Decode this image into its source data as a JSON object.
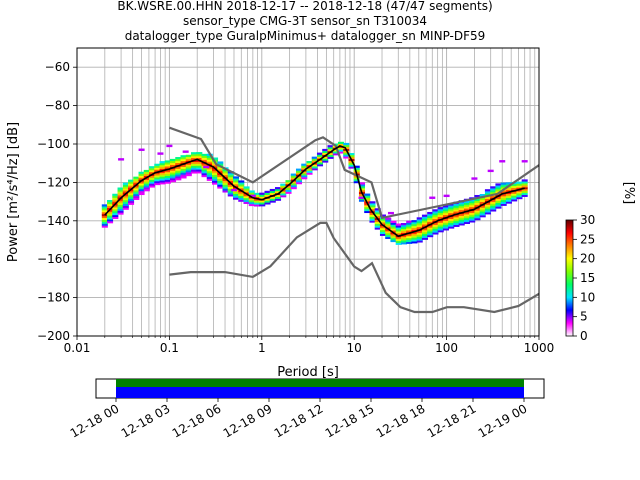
{
  "chart_data": {
    "type": "line",
    "title_lines": [
      "BK.WSRE.00.HHN   2018-12-17 -- 2018-12-18  (47/47 segments)",
      "sensor_type CMG-3T sensor_sn T310034",
      "datalogger_type GuralpMinimus+ datalogger_sn MINP-DF59"
    ],
    "xlabel": "Period [s]",
    "ylabel": "Power [m²/s⁴/Hz] [dB]",
    "x_scale": "log",
    "xlim": [
      0.01,
      1000
    ],
    "ylim": [
      -200,
      -50
    ],
    "x_ticks": [
      {
        "value": 0.01,
        "label": "0.01"
      },
      {
        "value": 0.1,
        "label": "0.1"
      },
      {
        "value": 1,
        "label": "1"
      },
      {
        "value": 10,
        "label": "10"
      },
      {
        "value": 100,
        "label": "100"
      },
      {
        "value": 1000,
        "label": "1000"
      }
    ],
    "y_ticks": [
      {
        "value": -200,
        "label": "−200"
      },
      {
        "value": -180,
        "label": "−180"
      },
      {
        "value": -160,
        "label": "−160"
      },
      {
        "value": -140,
        "label": "−140"
      },
      {
        "value": -120,
        "label": "−120"
      },
      {
        "value": -100,
        "label": "−100"
      },
      {
        "value": -80,
        "label": "−80"
      },
      {
        "value": -60,
        "label": "−60"
      }
    ],
    "grid": true,
    "noise_models": {
      "high": [
        [
          0.1,
          -91.5
        ],
        [
          0.22,
          -97.4
        ],
        [
          0.32,
          -110.5
        ],
        [
          0.8,
          -120
        ],
        [
          3.8,
          -98
        ],
        [
          4.6,
          -96.5
        ],
        [
          6.3,
          -101
        ],
        [
          7.9,
          -113.5
        ],
        [
          15.4,
          -120
        ],
        [
          20,
          -138.5
        ],
        [
          354.8,
          -126
        ],
        [
          1000,
          -111
        ]
      ],
      "low": [
        [
          0.1,
          -168
        ],
        [
          0.17,
          -166.7
        ],
        [
          0.4,
          -166.7
        ],
        [
          0.8,
          -169.2
        ],
        [
          1.24,
          -163.7
        ],
        [
          2.4,
          -148.6
        ],
        [
          4.3,
          -141.1
        ],
        [
          5,
          -141.1
        ],
        [
          6,
          -149
        ],
        [
          10,
          -163.8
        ],
        [
          12,
          -166.2
        ],
        [
          15.6,
          -162.1
        ],
        [
          21.9,
          -177.5
        ],
        [
          31.6,
          -185
        ],
        [
          45,
          -187.5
        ],
        [
          70,
          -187.5
        ],
        [
          101,
          -185
        ],
        [
          154,
          -185
        ],
        [
          328,
          -187.5
        ],
        [
          600,
          -184.4
        ],
        [
          1000,
          -178
        ]
      ]
    },
    "median": [
      [
        0.02,
        -137
      ],
      [
        0.03,
        -128
      ],
      [
        0.05,
        -119
      ],
      [
        0.07,
        -115
      ],
      [
        0.1,
        -113
      ],
      [
        0.15,
        -110
      ],
      [
        0.2,
        -108
      ],
      [
        0.3,
        -112
      ],
      [
        0.5,
        -122
      ],
      [
        0.8,
        -128
      ],
      [
        1,
        -129
      ],
      [
        1.5,
        -126
      ],
      [
        2,
        -121
      ],
      [
        3,
        -113
      ],
      [
        4,
        -109
      ],
      [
        6,
        -103
      ],
      [
        7,
        -101
      ],
      [
        8,
        -102
      ],
      [
        10,
        -111
      ],
      [
        12,
        -125
      ],
      [
        15,
        -134
      ],
      [
        20,
        -142
      ],
      [
        30,
        -148
      ],
      [
        50,
        -145
      ],
      [
        80,
        -140
      ],
      [
        120,
        -137
      ],
      [
        200,
        -134
      ],
      [
        400,
        -126
      ],
      [
        700,
        -123
      ]
    ],
    "spread": [
      [
        0.02,
        -132,
        -143
      ],
      [
        0.03,
        -122,
        -136
      ],
      [
        0.05,
        -115,
        -126
      ],
      [
        0.07,
        -111,
        -121
      ],
      [
        0.1,
        -108,
        -120
      ],
      [
        0.15,
        -106,
        -117
      ],
      [
        0.2,
        -104,
        -114
      ],
      [
        0.3,
        -106,
        -120
      ],
      [
        0.5,
        -116,
        -128
      ],
      [
        0.8,
        -125,
        -132
      ],
      [
        1,
        -126,
        -132
      ],
      [
        1.5,
        -123,
        -129
      ],
      [
        2,
        -118,
        -125
      ],
      [
        3,
        -110,
        -117
      ],
      [
        4,
        -106,
        -112
      ],
      [
        6,
        -100,
        -106
      ],
      [
        7,
        -99,
        -104
      ],
      [
        8,
        -99,
        -106
      ],
      [
        10,
        -107,
        -115
      ],
      [
        12,
        -120,
        -129
      ],
      [
        15,
        -129,
        -139
      ],
      [
        20,
        -137,
        -147
      ],
      [
        30,
        -142,
        -152
      ],
      [
        50,
        -139,
        -151
      ],
      [
        80,
        -134,
        -146
      ],
      [
        120,
        -131,
        -143
      ],
      [
        200,
        -128,
        -140
      ],
      [
        400,
        -120,
        -132
      ],
      [
        700,
        -119,
        -127
      ]
    ],
    "scatter_high": [
      [
        0.03,
        -108
      ],
      [
        0.05,
        -103
      ],
      [
        0.08,
        -105
      ],
      [
        0.1,
        -101
      ],
      [
        0.15,
        -104
      ],
      [
        0.25,
        -112
      ],
      [
        0.5,
        -124
      ],
      [
        0.8,
        -127
      ],
      [
        12,
        -128
      ],
      [
        25,
        -136
      ],
      [
        70,
        -128
      ],
      [
        100,
        -127
      ],
      [
        200,
        -118
      ],
      [
        300,
        -114
      ],
      [
        400,
        -109
      ],
      [
        700,
        -109
      ]
    ],
    "colorbar": {
      "label": "[%]",
      "ticks": [
        {
          "value": 0,
          "label": "0"
        },
        {
          "value": 5,
          "label": "5"
        },
        {
          "value": 10,
          "label": "10"
        },
        {
          "value": 15,
          "label": "15"
        },
        {
          "value": 20,
          "label": "20"
        },
        {
          "value": 25,
          "label": "25"
        },
        {
          "value": 30,
          "label": "30"
        }
      ],
      "range": [
        0,
        30
      ],
      "colors": [
        "#ffffff",
        "#ff00ff",
        "#0000ff",
        "#00e5ff",
        "#00ff66",
        "#80ff00",
        "#ffff00",
        "#ff8000",
        "#ff0000",
        "#600000"
      ]
    },
    "timeline": {
      "ticks": [
        "12-18 00",
        "12-18 03",
        "12-18 06",
        "12-18 09",
        "12-18 12",
        "12-18 15",
        "12-18 18",
        "12-18 21",
        "12-19 00"
      ],
      "coverage_color": "#008000",
      "data_color": "#0000ff",
      "coverage_start": 0,
      "coverage_end": 1
    }
  }
}
